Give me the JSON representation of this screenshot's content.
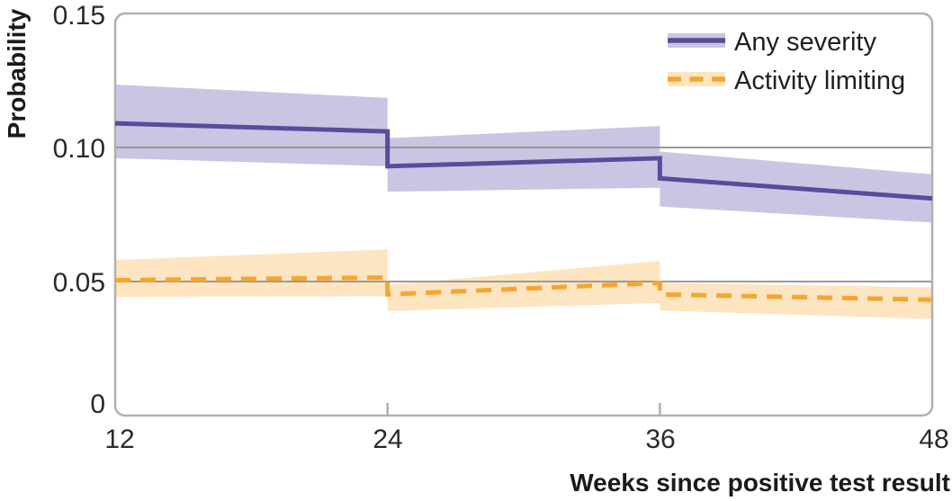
{
  "chart_data": {
    "type": "line",
    "title": "",
    "xlabel": "Weeks since positive test result",
    "ylabel": "Probability",
    "xlim": [
      12,
      48
    ],
    "ylim": [
      0,
      0.15
    ],
    "x_tick_labels": [
      "12",
      "24",
      "36",
      "48"
    ],
    "x_tick_values": [
      12,
      24,
      36,
      48
    ],
    "y_tick_labels": [
      "0.15",
      "0.10",
      "0.05",
      "0"
    ],
    "y_tick_values": [
      0.15,
      0.1,
      0.05,
      0
    ],
    "gridline_values": [
      0.05,
      0.1
    ],
    "inner_tick_weeks": [
      24,
      36
    ],
    "grid": "horizontal",
    "legend_position": "top-right-inside",
    "colors": {
      "axis_border": "#b0b0b0",
      "gridline": "#9a9a9a",
      "text": "#1f1f1f",
      "purple_line": "#584c9c",
      "purple_band": "#cbc5e3",
      "orange_line": "#f3a72f",
      "orange_band": "#fce5c0"
    },
    "series": [
      {
        "name": "Any severity",
        "line_style": "solid",
        "line_color": "#584c9c",
        "band_color": "#cbc5e3",
        "x": [
          12,
          24,
          24,
          36,
          36,
          48
        ],
        "y": [
          0.109,
          0.106,
          0.093,
          0.096,
          0.0885,
          0.081
        ],
        "ci_low": [
          0.096,
          0.093,
          0.0835,
          0.085,
          0.078,
          0.072
        ],
        "ci_high": [
          0.1235,
          0.1185,
          0.1035,
          0.108,
          0.0985,
          0.09
        ]
      },
      {
        "name": "Activity limiting",
        "line_style": "dashed",
        "line_color": "#f3a72f",
        "band_color": "#fce5c0",
        "x": [
          12,
          24,
          24,
          36,
          36,
          48
        ],
        "y": [
          0.0505,
          0.0515,
          0.0452,
          0.0495,
          0.0452,
          0.0432
        ],
        "ci_low": [
          0.0443,
          0.0445,
          0.039,
          0.042,
          0.0392,
          0.036
        ],
        "ci_high": [
          0.058,
          0.062,
          0.0487,
          0.0577,
          0.0495,
          0.0478
        ]
      }
    ]
  }
}
